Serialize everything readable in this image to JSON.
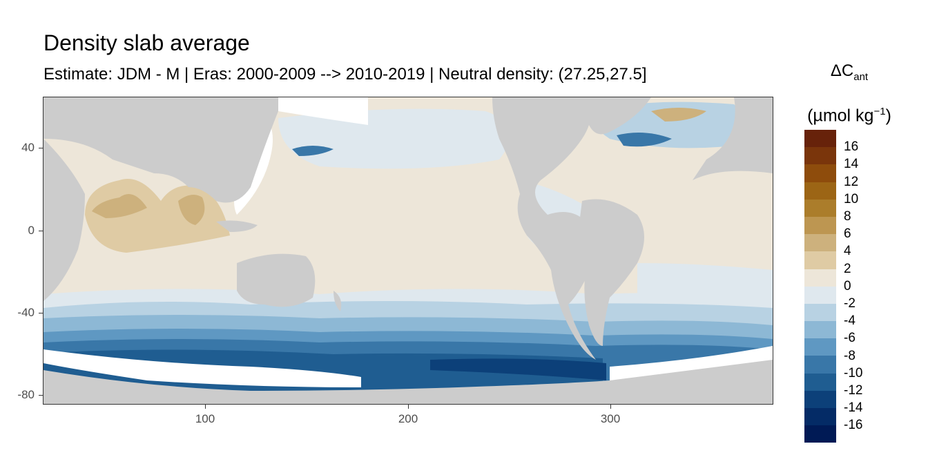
{
  "title": "Density slab average",
  "subtitle": "Estimate: JDM - M | Eras: 2000-2009 --> 2010-2019 | Neutral density: (27.25,27.5]",
  "legend": {
    "symbol": "ΔC",
    "subscript": "ant",
    "unit_prefix": "(µmol kg",
    "unit_exp": "−1",
    "unit_suffix": ")",
    "breaks": [
      "16",
      "14",
      "12",
      "10",
      "8",
      "6",
      "4",
      "2",
      "0",
      "-2",
      "-4",
      "-6",
      "-8",
      "-10",
      "-12",
      "-14",
      "-16"
    ],
    "colors": [
      "#67220a",
      "#7a350b",
      "#8e4c0c",
      "#9c6515",
      "#ab7d2b",
      "#bd9651",
      "#cdb17d",
      "#dfcba4",
      "#ede6d9",
      "#dfe8ee",
      "#b8d2e3",
      "#8db8d5",
      "#5f98c2",
      "#3977a8",
      "#1f5d91",
      "#0c4079",
      "#042b66",
      "#001a55"
    ]
  },
  "axes": {
    "x_ticks": [
      "100",
      "200",
      "300"
    ],
    "y_ticks": [
      "40",
      "0",
      "-40",
      "-80"
    ]
  },
  "colors": {
    "land": "#cccccc",
    "no_data": "#ffffff",
    "frame": "#333333"
  }
}
